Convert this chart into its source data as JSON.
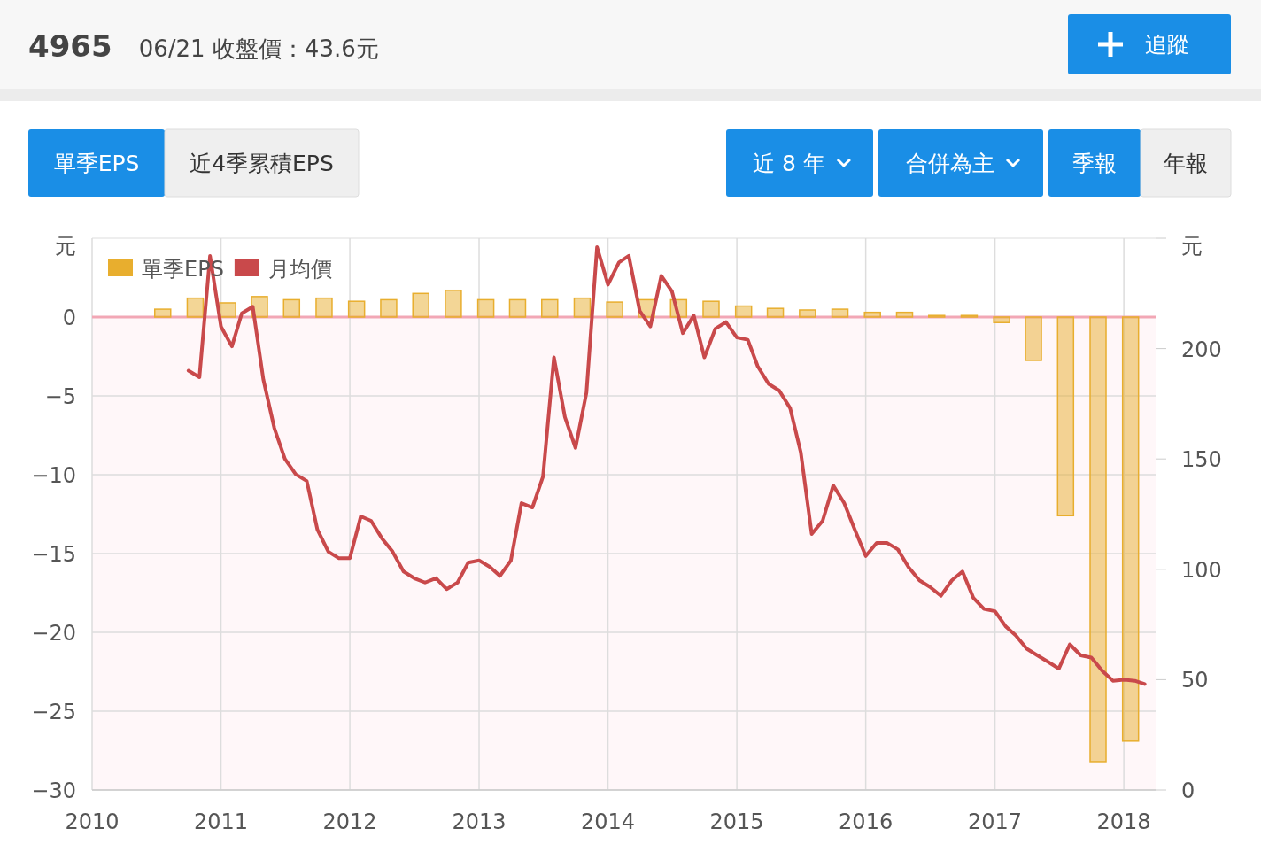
{
  "chart_data": {
    "type": "bar",
    "title": "4965",
    "subtitle": "06/21 收盤價：43.6元",
    "annotations": [
      "追蹤",
      "單季EPS",
      "近4季累積EPS",
      "近 8 年",
      "合併為主",
      "季報",
      "年報"
    ],
    "ylabel": "元",
    "y2label": "元",
    "xlim": [
      "2010",
      "2018-04"
    ],
    "xticks": [
      "2010",
      "2011",
      "2012",
      "2013",
      "2014",
      "2015",
      "2016",
      "2017",
      "2018"
    ],
    "ylim": [
      -30,
      5
    ],
    "yticks": [
      {
        "value": 0,
        "label": "0"
      },
      {
        "value": -5,
        "label": "−5"
      },
      {
        "value": -10,
        "label": "−10"
      },
      {
        "value": -15,
        "label": "−15"
      },
      {
        "value": -20,
        "label": "−20"
      },
      {
        "value": -25,
        "label": "−25"
      },
      {
        "value": -30,
        "label": "−30"
      }
    ],
    "y2lim": [
      0,
      250
    ],
    "y2ticks": [
      0,
      50,
      100,
      150,
      200
    ],
    "grid": true,
    "legend": "top left",
    "ref_lines": [
      {
        "axis": "y",
        "value": 0,
        "color": "#f2a7b5"
      }
    ],
    "bands": [
      {
        "axis": "y",
        "from": -30,
        "to": 0,
        "color": "#fff7f9"
      }
    ],
    "series": [
      {
        "name": "單季EPS",
        "color": "#e8ae2e",
        "x": [
          "2010-07-20",
          "2010-10-20",
          "2011-01-20",
          "2011-04-20",
          "2011-07-20",
          "2011-10-20",
          "2012-01-20",
          "2012-04-20",
          "2012-07-20",
          "2012-10-20",
          "2013-01-20",
          "2013-04-20",
          "2013-07-20",
          "2013-10-20",
          "2014-01-20",
          "2014-04-20",
          "2014-07-20",
          "2014-10-20",
          "2015-01-20",
          "2015-04-20",
          "2015-07-20",
          "2015-10-20",
          "2016-01-20",
          "2016-04-20",
          "2016-07-20",
          "2016-10-20",
          "2017-01-20",
          "2017-04-20",
          "2017-07-20",
          "2017-10-20",
          "2018-01-20"
        ],
        "values": [
          0.5,
          1.2,
          0.9,
          1.3,
          1.1,
          1.2,
          1.0,
          1.1,
          1.5,
          1.7,
          1.1,
          1.1,
          1.1,
          1.2,
          0.95,
          1.1,
          1.1,
          1.0,
          0.7,
          0.55,
          0.45,
          0.5,
          0.3,
          0.3,
          0.1,
          0.1,
          -0.35,
          -2.75,
          -12.6,
          -28.2,
          -26.9
        ]
      },
      {
        "name": "月均價",
        "type": "line",
        "axis": "y2",
        "color": "#c9494b",
        "x": [
          "2010-10",
          "2010-11",
          "2010-12",
          "2011-01",
          "2011-02",
          "2011-03",
          "2011-04",
          "2011-05",
          "2011-06",
          "2011-07",
          "2011-08",
          "2011-09",
          "2011-10",
          "2011-11",
          "2011-12",
          "2012-01",
          "2012-02",
          "2012-03",
          "2012-04",
          "2012-05",
          "2012-06",
          "2012-07",
          "2012-08",
          "2012-09",
          "2012-10",
          "2012-11",
          "2012-12",
          "2013-01",
          "2013-02",
          "2013-03",
          "2013-04",
          "2013-05",
          "2013-06",
          "2013-07",
          "2013-08",
          "2013-09",
          "2013-10",
          "2013-11",
          "2013-12",
          "2014-01",
          "2014-02",
          "2014-03",
          "2014-04",
          "2014-05",
          "2014-06",
          "2014-07",
          "2014-08",
          "2014-09",
          "2014-10",
          "2014-11",
          "2014-12",
          "2015-01",
          "2015-02",
          "2015-03",
          "2015-04",
          "2015-05",
          "2015-06",
          "2015-07",
          "2015-08",
          "2015-09",
          "2015-10",
          "2015-11",
          "2015-12",
          "2016-01",
          "2016-02",
          "2016-03",
          "2016-04",
          "2016-05",
          "2016-06",
          "2016-07",
          "2016-08",
          "2016-09",
          "2016-10",
          "2016-11",
          "2016-12",
          "2017-01",
          "2017-02",
          "2017-03",
          "2017-04",
          "2017-05",
          "2017-06",
          "2017-07",
          "2017-08",
          "2017-09",
          "2017-10",
          "2017-11",
          "2017-12",
          "2018-01",
          "2018-02",
          "2018-03"
        ],
        "values": [
          190,
          187,
          242,
          210,
          201,
          216,
          219,
          186,
          164,
          150,
          143,
          140,
          118,
          108,
          105,
          105,
          124,
          122,
          114,
          108,
          99,
          96,
          94,
          96,
          91,
          94,
          103,
          104,
          101,
          97,
          104,
          130,
          128,
          142,
          196,
          169,
          155,
          180,
          246,
          229,
          239,
          242,
          217,
          210,
          233,
          226,
          207,
          215,
          196,
          209,
          212,
          205,
          204,
          192,
          184,
          181,
          173,
          153,
          116,
          122,
          138,
          130,
          118,
          106,
          112,
          112,
          109,
          101,
          95,
          92,
          88,
          95,
          99,
          87,
          82,
          81,
          74,
          70,
          64,
          61,
          58,
          55,
          66,
          61,
          60,
          54,
          49.5,
          50,
          49.5,
          48
        ]
      }
    ]
  }
}
